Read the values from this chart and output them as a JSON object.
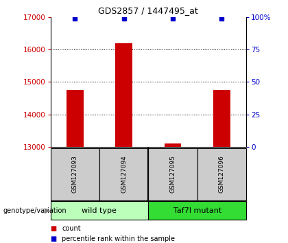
{
  "title": "GDS2857 / 1447495_at",
  "samples": [
    "GSM127093",
    "GSM127094",
    "GSM127095",
    "GSM127096"
  ],
  "counts": [
    14750,
    16200,
    13100,
    14750
  ],
  "percentiles": [
    99,
    99,
    99,
    99
  ],
  "ylim_left": [
    13000,
    17000
  ],
  "ylim_right": [
    0,
    100
  ],
  "yticks_left": [
    13000,
    14000,
    15000,
    16000,
    17000
  ],
  "yticks_right": [
    0,
    25,
    50,
    75,
    100
  ],
  "ytick_labels_right": [
    "0",
    "25",
    "50",
    "75",
    "100%"
  ],
  "bar_color": "#cc0000",
  "dot_color": "#0000cc",
  "groups": [
    {
      "label": "wild type",
      "indices": [
        0,
        1
      ],
      "color": "#bbffbb"
    },
    {
      "label": "Taf7l mutant",
      "indices": [
        2,
        3
      ],
      "color": "#33dd33"
    }
  ],
  "group_label": "genotype/variation",
  "legend_count_label": "count",
  "legend_percentile_label": "percentile rank within the sample",
  "bar_width": 0.35,
  "sample_box_color": "#cccccc"
}
